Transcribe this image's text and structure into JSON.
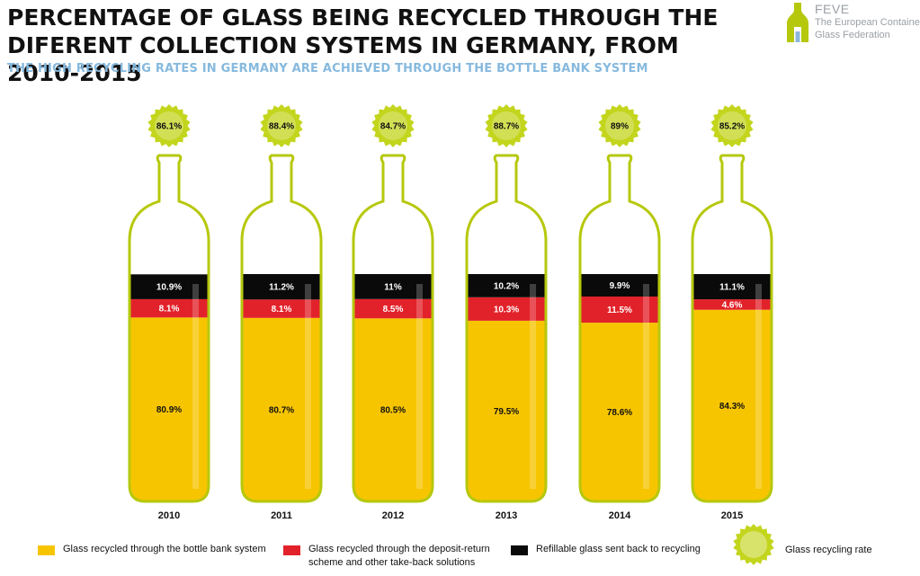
{
  "header": {
    "title": "PERCENTAGE OF GLASS BEING RECYCLED THROUGH THE DIFERENT COLLECTION SYSTEMS IN GERMANY, FROM 2010-2015",
    "subtitle": "THE HIGH RECYCLING RATES IN GERMANY ARE ACHIEVED THROUGH THE BOTTLE BANK SYSTEM"
  },
  "logo": {
    "name": "FEVE",
    "line1": "The European Container",
    "line2": "Glass Federation"
  },
  "colors": {
    "bottle_bank": "#f7c500",
    "deposit_return": "#e2222a",
    "refillable": "#0a0a0a",
    "bottle_glass": "#ffffff",
    "bottle_outline": "#b6c80c",
    "badge": "#c3d51c"
  },
  "legend": {
    "bottle_bank": "Glass recycled through the bottle bank system",
    "deposit_return": "Glass recycled through the deposit-return scheme and other take-back solutions",
    "refillable": "Refillable glass sent back to recycling",
    "recycling_rate": "Glass recycling rate"
  },
  "chart_data": {
    "type": "bar",
    "subtype": "stacked",
    "title": "PERCENTAGE OF GLASS BEING RECYCLED THROUGH THE DIFERENT COLLECTION SYSTEMS IN GERMANY, FROM 2010-2015",
    "categories": [
      "2010",
      "2011",
      "2012",
      "2013",
      "2014",
      "2015"
    ],
    "series": [
      {
        "name": "Glass recycled through the bottle bank system",
        "values": [
          80.9,
          80.7,
          80.5,
          79.5,
          78.6,
          84.3
        ],
        "labels": [
          "80.9%",
          "80.7%",
          "80.5%",
          "79.5%",
          "78.6%",
          "84.3%"
        ]
      },
      {
        "name": "Glass recycled through the deposit-return scheme and other take-back solutions",
        "values": [
          8.1,
          8.1,
          8.5,
          10.3,
          11.5,
          4.6
        ],
        "labels": [
          "8.1%",
          "8.1%",
          "8.5%",
          "10.3%",
          "11.5%",
          "4.6%"
        ]
      },
      {
        "name": "Refillable glass sent back to recycling",
        "values": [
          10.9,
          11.2,
          11.0,
          10.2,
          9.9,
          11.1
        ],
        "labels": [
          "10.9%",
          "11.2%",
          "11%",
          "10.2%",
          "9.9%",
          "11.1%"
        ]
      }
    ],
    "recycling_rate": {
      "name": "Glass recycling rate",
      "values": [
        86.1,
        88.4,
        84.7,
        88.7,
        89,
        85.2
      ],
      "labels": [
        "86.1%",
        "88.4%",
        "84.7%",
        "88.7%",
        "89%",
        "85.2%"
      ]
    },
    "xlabel": "",
    "ylabel": "",
    "ylim": [
      0,
      100
    ],
    "legend_position": "bottom"
  }
}
